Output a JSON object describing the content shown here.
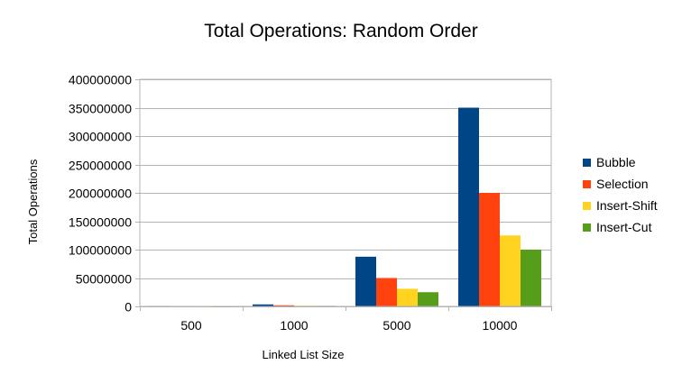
{
  "chart_data": {
    "type": "bar",
    "title": "Total Operations: Random Order",
    "xlabel": "Linked List Size",
    "ylabel": "Total Operations",
    "categories": [
      "500",
      "1000",
      "5000",
      "10000"
    ],
    "ylim": [
      0,
      400000000
    ],
    "yticks": [
      "0",
      "50000000",
      "100000000",
      "150000000",
      "200000000",
      "250000000",
      "300000000",
      "350000000",
      "400000000"
    ],
    "grid": true,
    "legend_position": "right",
    "series": [
      {
        "name": "Bubble",
        "color": "#004586",
        "values": [
          875000,
          3500000,
          87500000,
          350000000
        ]
      },
      {
        "name": "Selection",
        "color": "#ff420e",
        "values": [
          500000,
          2000000,
          50000000,
          200000000
        ]
      },
      {
        "name": "Insert-Shift",
        "color": "#ffd320",
        "values": [
          310000,
          1250000,
          31000000,
          125000000
        ]
      },
      {
        "name": "Insert-Cut",
        "color": "#579d1c",
        "values": [
          250000,
          1000000,
          25000000,
          100000000
        ]
      }
    ]
  }
}
